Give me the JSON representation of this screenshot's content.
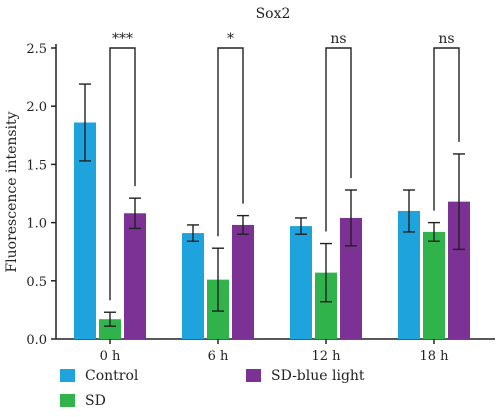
{
  "chart_data": {
    "type": "bar",
    "title": "Sox2",
    "ylabel": "Fluorescence intensity",
    "xlabel": "",
    "ylim": [
      0,
      2.5
    ],
    "yticks": [
      "0.0",
      "0.5",
      "1.0",
      "1.5",
      "2.0",
      "2.5"
    ],
    "grid": false,
    "legend_position": "bottom",
    "categories": [
      "0 h",
      "6 h",
      "12 h",
      "18 h"
    ],
    "series": [
      {
        "name": "Control",
        "color": "#1ea3dc",
        "values": [
          1.86,
          0.91,
          0.97,
          1.1
        ],
        "errors": [
          0.33,
          0.07,
          0.07,
          0.18
        ]
      },
      {
        "name": "SD",
        "color": "#2fb34a",
        "values": [
          0.17,
          0.51,
          0.57,
          0.92
        ],
        "errors": [
          0.06,
          0.27,
          0.25,
          0.08
        ]
      },
      {
        "name": "SD-blue light",
        "color": "#7b3294",
        "values": [
          1.08,
          0.98,
          1.04,
          1.18
        ],
        "errors": [
          0.13,
          0.08,
          0.24,
          0.41
        ]
      }
    ],
    "significance": [
      "***",
      "*",
      "ns",
      "ns"
    ]
  }
}
